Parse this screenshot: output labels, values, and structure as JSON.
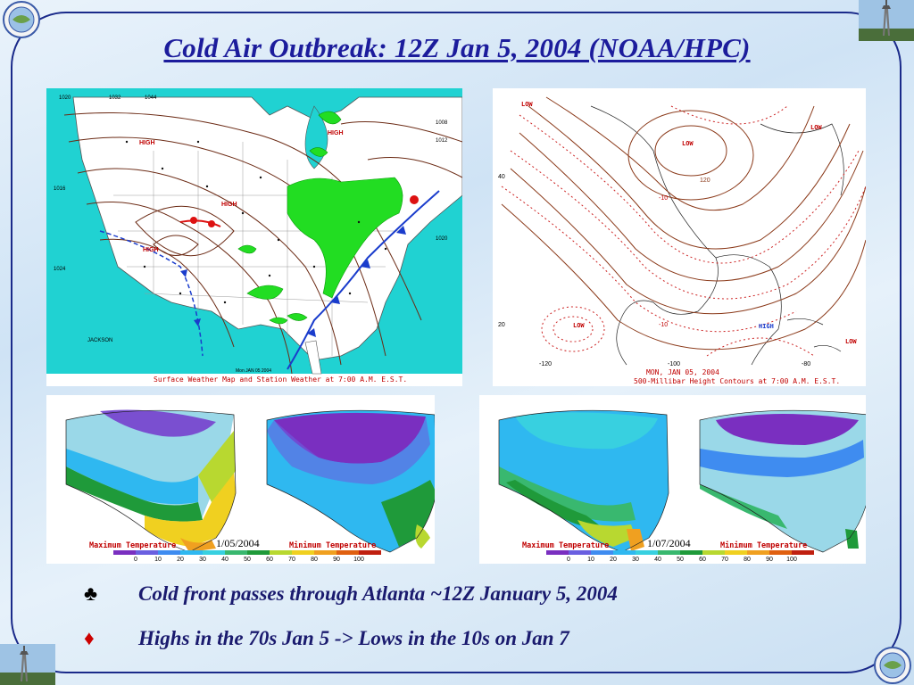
{
  "slide": {
    "title": "Cold Air Outbreak:  12Z Jan 5, 2004 (NOAA/HPC)",
    "bullets": [
      {
        "marker": "♣",
        "marker_color": "#000000",
        "text": "Cold front passes through Atlanta ~12Z January 5, 2004"
      },
      {
        "marker": "♦",
        "marker_color": "#cc0000",
        "text": "Highs in the 70s Jan 5 -> Lows in the 10s on Jan 7"
      }
    ]
  },
  "surface_map": {
    "caption": "Surface Weather Map and Station Weather at 7:00 A.M. E.S.T.",
    "stamp": "Mon JAN 05 2004",
    "highs": [
      "HIGH",
      "HIGH",
      "HIGH",
      "HIGH"
    ],
    "city": "JACKSON",
    "isobars": [
      "1020",
      "1024",
      "1028",
      "1032",
      "1036",
      "1040",
      "1044",
      "1016",
      "1012",
      "1008"
    ],
    "colors": {
      "ocean": "#20d2d2",
      "land": "#ffffff",
      "precip": "#22dd22",
      "front_cold": "#1a3ccc",
      "front_warm": "#dd1111"
    }
  },
  "upper_map": {
    "caption": "500-Millibar Height Contours at 7:00 A.M. E.S.T.",
    "stamp": "MON, JAN 05, 2004",
    "labels": [
      "LOW",
      "LOW",
      "LOW",
      "LOW",
      "HIGH",
      "LOW"
    ],
    "coords": [
      "40",
      "20",
      "-120",
      "-100",
      "-80",
      "-10",
      "-10",
      "120"
    ],
    "colors": {
      "contour": "#8b3a1a",
      "isotherm": "#cc2222"
    }
  },
  "temp_panels": [
    {
      "date": "1/05/2004",
      "max_label": "Maximum Temperature",
      "min_label": "Minimum Temperature"
    },
    {
      "date": "1/07/2004",
      "max_label": "Maximum Temperature",
      "min_label": "Minimum Temperature"
    }
  ],
  "temp_scale": {
    "ticks": [
      "0",
      "10",
      "20",
      "30",
      "40",
      "50",
      "60",
      "70",
      "80",
      "90",
      "100"
    ],
    "colors": [
      "#7a2fc0",
      "#6a5fe0",
      "#3f8cf0",
      "#2fb8f0",
      "#38d0e0",
      "#39b86f",
      "#1f9a3a",
      "#b8d830",
      "#f0d020",
      "#f0a020",
      "#e06010",
      "#c02010"
    ]
  }
}
